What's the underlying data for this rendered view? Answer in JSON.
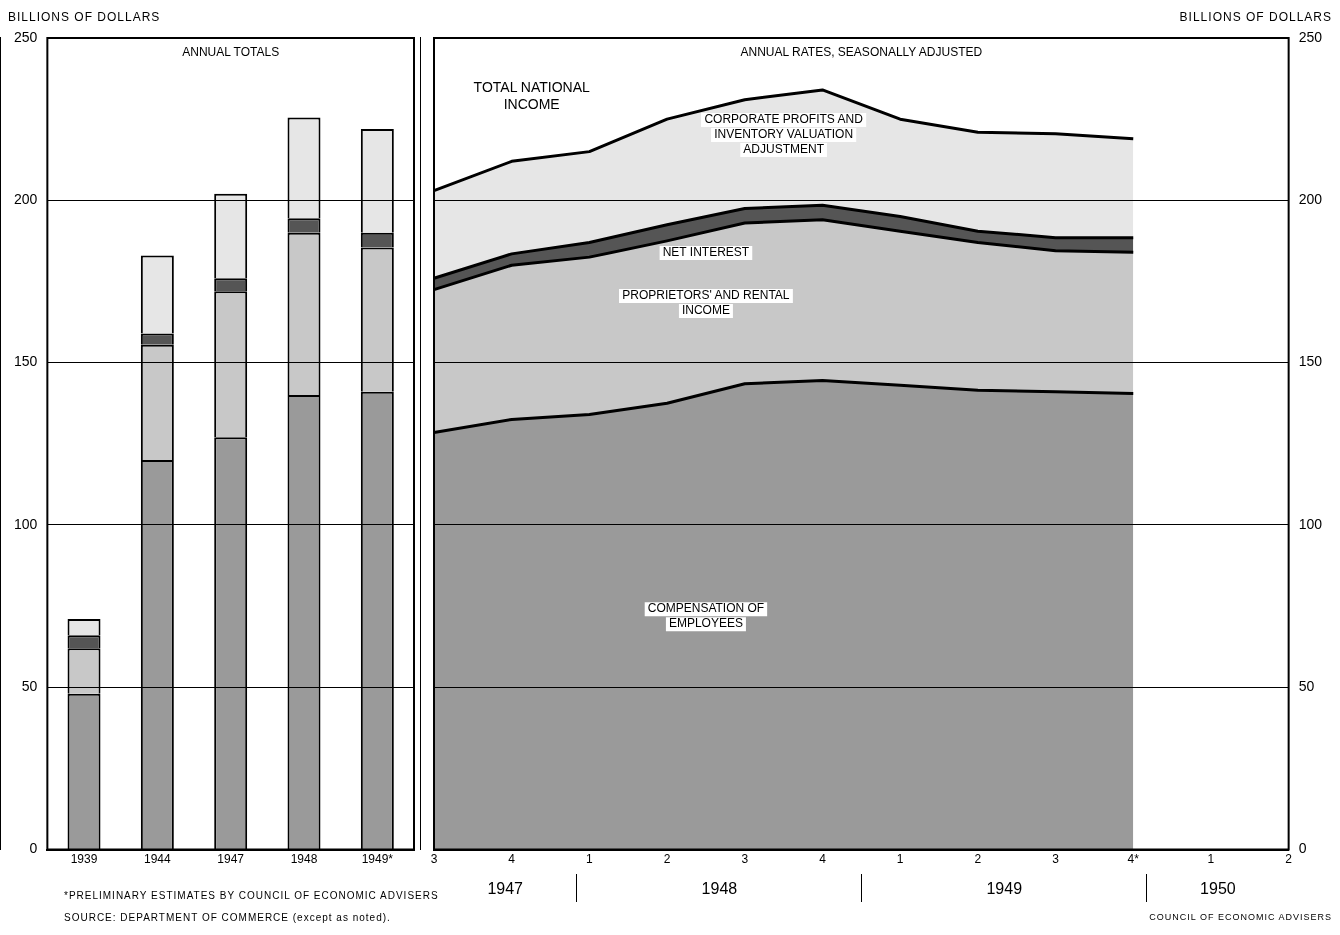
{
  "chart_data": [
    {
      "type": "bar",
      "stacked": true,
      "title": "ANNUAL TOTALS",
      "ylabel": "BILLIONS OF DOLLARS",
      "categories": [
        "1939",
        "1944",
        "1947",
        "1948",
        "1949*"
      ],
      "series": [
        {
          "color": "#9a9a9a",
          "values": [
            48,
            120,
            127,
            140,
            141
          ]
        },
        {
          "color": "#c8c8c8",
          "values": [
            14,
            35.5,
            45,
            50,
            44.5
          ]
        },
        {
          "color": "#555555",
          "values": [
            4,
            3.5,
            4,
            4.5,
            4.5
          ]
        },
        {
          "color": "#e6e6e6",
          "values": [
            5,
            24,
            26,
            31,
            32
          ]
        }
      ],
      "ylim": [
        0,
        250
      ],
      "yticks": [
        0,
        50,
        100,
        150,
        200,
        250
      ],
      "grid": "y",
      "legend": false,
      "annotations": [
        "*PRELIMINARY ESTIMATES BY COUNCIL OF ECONOMIC ADVISERS",
        "SOURCE: DEPARTMENT OF COMMERCE (except as noted)."
      ]
    },
    {
      "type": "area",
      "stacked": true,
      "title": "ANNUAL RATES, SEASONALLY ADJUSTED",
      "ylabel": "BILLIONS OF DOLLARS",
      "categories": [
        "3",
        "4",
        "1",
        "2",
        "3",
        "4",
        "1",
        "2",
        "3",
        "4*",
        "1",
        "2"
      ],
      "series": [
        {
          "name": "COMPENSATION OF EMPLOYEES",
          "color": "#9a9a9a",
          "values": [
            128.5,
            132.5,
            134,
            137.5,
            143.5,
            144.5,
            143,
            141.5,
            141,
            140.5,
            null,
            null
          ]
        },
        {
          "name": "PROPRIETORS' AND RENTAL INCOME",
          "color": "#c8c8c8",
          "values": [
            44,
            47.5,
            48.5,
            50,
            49.5,
            49.5,
            47.5,
            45.5,
            43.5,
            43.5,
            null,
            null
          ]
        },
        {
          "name": "NET INTEREST",
          "color": "#555555",
          "values": [
            3.5,
            3.5,
            4.5,
            5,
            4.5,
            4.5,
            4.5,
            3.5,
            4,
            4.5,
            null,
            null
          ]
        },
        {
          "name": "CORPORATE PROFITS AND INVENTORY VALUATION ADJUSTMENT",
          "color": "#e6e6e6",
          "values": [
            27,
            28.5,
            28,
            32.5,
            33.5,
            35.5,
            30,
            30.5,
            32,
            30.5,
            null,
            null
          ]
        }
      ],
      "ylim": [
        0,
        250
      ],
      "yticks": [
        0,
        50,
        100,
        150,
        200,
        250
      ],
      "grid": "y",
      "legend": false,
      "annotations": [
        "TOTAL NATIONAL INCOME",
        "1947",
        "1948",
        "1949",
        "1950",
        "COUNCIL OF ECONOMIC ADVISERS"
      ]
    }
  ]
}
